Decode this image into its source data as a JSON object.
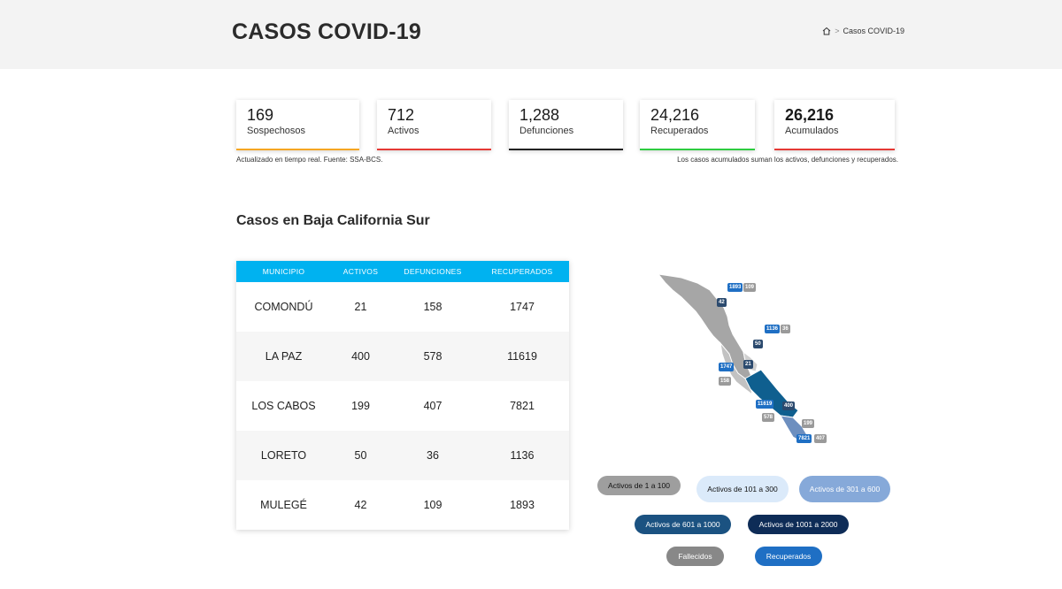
{
  "header": {
    "title": "CASOS COVID-19",
    "breadcrumb_current": "Casos COVID-19"
  },
  "summary_cards": [
    {
      "value": "169",
      "label": "Sospechosos",
      "color": "#f5a623"
    },
    {
      "value": "712",
      "label": "Activos",
      "color": "#e53935"
    },
    {
      "value": "1,288",
      "label": "Defunciones",
      "color": "#222222"
    },
    {
      "value": "24,216",
      "label": "Recuperados",
      "color": "#2ecc40"
    },
    {
      "value": "26,216",
      "label": "Acumulados",
      "color": "#e53935"
    }
  ],
  "notes": {
    "left": "Actualizado en tiempo real. Fuente: SSA-BCS.",
    "right": "Los casos acumulados suman los activos, defunciones y recuperados."
  },
  "section_title": "Casos en Baja California Sur",
  "table": {
    "headers": [
      "MUNICIPIO",
      "ACTIVOS",
      "DEFUNCIONES",
      "RECUPERADOS"
    ],
    "header_color": "#00b2f0",
    "rows": [
      [
        "COMONDÚ",
        "21",
        "158",
        "1747"
      ],
      [
        "LA PAZ",
        "400",
        "578",
        "11619"
      ],
      [
        "LOS CABOS",
        "199",
        "407",
        "7821"
      ],
      [
        "LORETO",
        "50",
        "36",
        "1136"
      ],
      [
        "MULEGÉ",
        "42",
        "109",
        "1893"
      ]
    ]
  },
  "map_labels": {
    "mulege_recovered": "1893",
    "mulege_deaths": "109",
    "mulege_active": "42",
    "loreto_recovered": "1136",
    "loreto_deaths": "36",
    "loreto_active": "50",
    "comondu_recovered": "1747",
    "comondu_deaths": "158",
    "comondu_active": "21",
    "lapaz_recovered": "11619",
    "lapaz_deaths": "578",
    "lapaz_active": "400",
    "loscabos_recovered": "7821",
    "loscabos_deaths": "407",
    "loscabos_active": "199"
  },
  "legend": {
    "active_1_100": "Activos de 1 a 100",
    "active_101_300": "Activos de 101 a 300",
    "active_301_600": "Activos de 301 a 600",
    "active_601_1000": "Activos de 601 a 1000",
    "active_1001_2000": "Activos de 1001 a 2000",
    "deaths": "Fallecidos",
    "recovered": "Recuperados"
  },
  "icons": {
    "home": "home-icon"
  }
}
